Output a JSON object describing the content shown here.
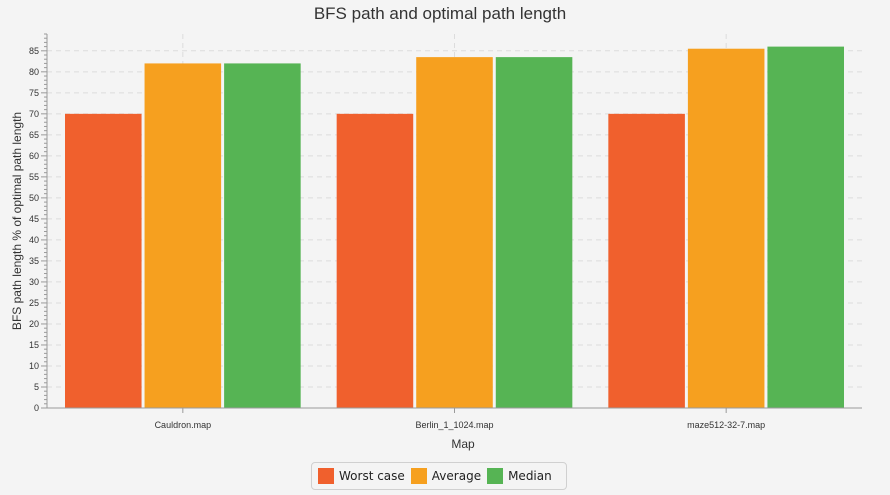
{
  "chart_data": {
    "type": "bar",
    "title": "BFS path and optimal path length",
    "xlabel": "Map",
    "ylabel": "BFS path length % of optimal path length",
    "categories": [
      "Cauldron.map",
      "Berlin_1_1024.map",
      "maze512-32-7.map"
    ],
    "series": [
      {
        "name": "Worst case",
        "color": "#f0602d",
        "values": [
          70,
          70,
          70
        ]
      },
      {
        "name": "Average",
        "color": "#f6a01f",
        "values": [
          82,
          83.5,
          85.5
        ]
      },
      {
        "name": "Median",
        "color": "#56b454",
        "values": [
          82,
          83.5,
          86
        ]
      }
    ],
    "ylim": [
      0,
      89
    ],
    "yticks": [
      0,
      5,
      10,
      15,
      20,
      25,
      30,
      35,
      40,
      45,
      50,
      55,
      60,
      65,
      70,
      75,
      80,
      85
    ],
    "grid": true,
    "legend_position": "bottom"
  }
}
